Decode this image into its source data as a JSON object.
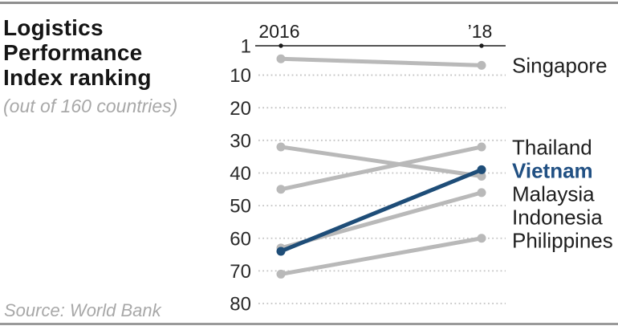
{
  "header": {
    "title_lines": [
      "Logistics",
      "Performance",
      "Index ranking"
    ],
    "subtitle": "(out of 160 countries)"
  },
  "footer": {
    "source": "Source: World Bank"
  },
  "chart_data": {
    "type": "line",
    "variant": "slope-chart",
    "title": "Logistics Performance Index ranking",
    "subtitle": "(out of 160 countries)",
    "source": "Source: World Bank",
    "x_labels": [
      "2016",
      "’18"
    ],
    "x": [
      2016,
      2018
    ],
    "y_ticks": [
      1,
      10,
      20,
      30,
      40,
      50,
      60,
      70,
      80
    ],
    "ylim": [
      1,
      80
    ],
    "y_inverted": true,
    "ylabel": "Ranking (out of 160 countries)",
    "grid": "dotted-horizontal",
    "legend_position": "right-inline-labels",
    "colors": {
      "default_line": "#b9b9b9",
      "highlight_line": "#1e4d78",
      "label": "#1f1f1f",
      "highlight_label": "#215083",
      "axis": "#1c1c1c",
      "gridline": "#c3c3c3"
    },
    "series": [
      {
        "name": "Singapore",
        "values": [
          5,
          7
        ],
        "highlight": false
      },
      {
        "name": "Thailand",
        "values": [
          45,
          32
        ],
        "highlight": false
      },
      {
        "name": "Vietnam",
        "values": [
          64,
          39
        ],
        "highlight": true
      },
      {
        "name": "Malaysia",
        "values": [
          32,
          41
        ],
        "highlight": false
      },
      {
        "name": "Indonesia",
        "values": [
          63,
          46
        ],
        "highlight": false
      },
      {
        "name": "Philippines",
        "values": [
          71,
          60
        ],
        "highlight": false
      }
    ]
  }
}
